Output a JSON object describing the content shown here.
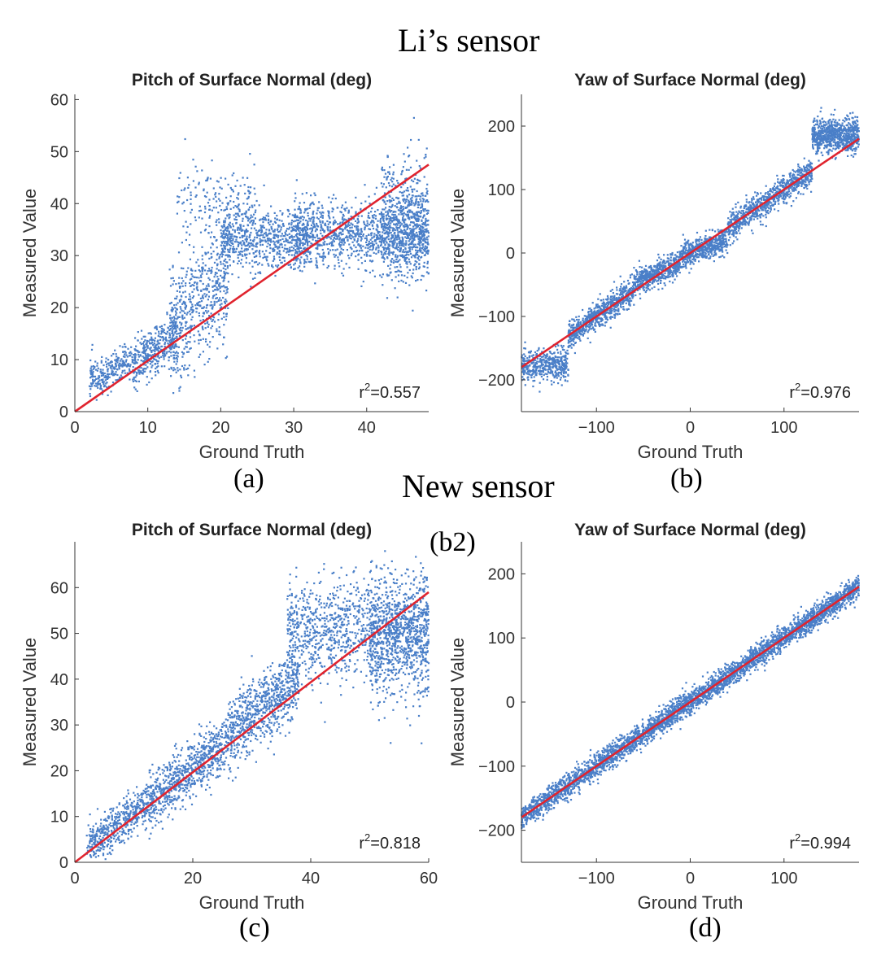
{
  "group_titles": {
    "top": "Li’s sensor",
    "bottom": "New sensor"
  },
  "stray_label": "(b2)",
  "chart_data": [
    {
      "id": "a",
      "panel_label": "(a)",
      "type": "scatter",
      "title": "Pitch of Surface Normal (deg)",
      "xlabel": "Ground Truth",
      "ylabel": "Measured Value",
      "xlim": [
        0,
        48.5
      ],
      "ylim": [
        0,
        61
      ],
      "xticks": [
        0,
        10,
        20,
        30,
        40
      ],
      "yticks": [
        0,
        10,
        20,
        30,
        40,
        50,
        60
      ],
      "r2_prefix": "r",
      "r2_exp": "2",
      "r2_value": "=0.557",
      "fit_line": {
        "x": [
          0,
          48.5
        ],
        "y": [
          0,
          47.5
        ]
      },
      "point_color": "#4a7fc8",
      "line_color": "#e0242e",
      "seed": 11,
      "n_points": 3800,
      "clusters": [
        {
          "n": 0.07,
          "x": [
            2,
            8
          ],
          "mean": [
            0.6,
            5.0
          ],
          "sd": 1.8
        },
        {
          "n": 0.1,
          "x": [
            8,
            14
          ],
          "mean": [
            0.9,
            2.0
          ],
          "sd": 2.5
        },
        {
          "n": 0.15,
          "x": [
            13,
            21
          ],
          "mean": [
            1.25,
            0.0
          ],
          "sd": 5.5
        },
        {
          "n": 0.18,
          "x": [
            20,
            32
          ],
          "mean": [
            0.0,
            33.0
          ],
          "sd": 2.8
        },
        {
          "n": 0.3,
          "x": [
            30,
            48.5
          ],
          "mean": [
            0.0,
            34.0
          ],
          "sd": 3.2
        },
        {
          "n": 0.15,
          "x": [
            42,
            48.5
          ],
          "mean": [
            0.0,
            36.5
          ],
          "sd": 5.5
        },
        {
          "n": 0.05,
          "x": [
            14,
            25
          ],
          "mean": [
            0.0,
            40.0
          ],
          "sd": 4.0
        }
      ]
    },
    {
      "id": "b",
      "panel_label": "(b)",
      "type": "scatter",
      "title": "Yaw of Surface Normal (deg)",
      "xlabel": "Ground Truth",
      "ylabel": "Measured Value",
      "xlim": [
        -180,
        180
      ],
      "ylim": [
        -250,
        250
      ],
      "xticks": [
        -100,
        0,
        100
      ],
      "yticks": [
        -200,
        -100,
        0,
        100,
        200
      ],
      "r2_prefix": "r",
      "r2_exp": "2",
      "r2_value": "=0.976",
      "fit_line": {
        "x": [
          -180,
          180
        ],
        "y": [
          -180,
          180
        ]
      },
      "point_color": "#4a7fc8",
      "line_color": "#e0242e",
      "seed": 23,
      "n_points": 3800,
      "clusters": [
        {
          "n": 0.12,
          "x": [
            -180,
            -130
          ],
          "mean": [
            0.0,
            -175.0
          ],
          "sd": 12
        },
        {
          "n": 0.18,
          "x": [
            -130,
            -60
          ],
          "mean": [
            1.0,
            0.0
          ],
          "sd": 11
        },
        {
          "n": 0.14,
          "x": [
            -60,
            -10
          ],
          "mean": [
            0.6,
            -10.0
          ],
          "sd": 10
        },
        {
          "n": 0.14,
          "x": [
            -10,
            40
          ],
          "mean": [
            0.5,
            0.0
          ],
          "sd": 10
        },
        {
          "n": 0.22,
          "x": [
            40,
            130
          ],
          "mean": [
            1.0,
            0.0
          ],
          "sd": 11
        },
        {
          "n": 0.2,
          "x": [
            130,
            180
          ],
          "mean": [
            0.0,
            185.0
          ],
          "sd": 14
        }
      ]
    },
    {
      "id": "c",
      "panel_label": "(c)",
      "type": "scatter",
      "title": "Pitch of Surface Normal (deg)",
      "xlabel": "Ground Truth",
      "ylabel": "Measured Value",
      "xlim": [
        0,
        60
      ],
      "ylim": [
        0,
        70
      ],
      "xticks": [
        0,
        20,
        40,
        60
      ],
      "yticks": [
        0,
        10,
        20,
        30,
        40,
        50,
        60
      ],
      "r2_prefix": "r",
      "r2_exp": "2",
      "r2_value": "=0.818",
      "fit_line": {
        "x": [
          0,
          60
        ],
        "y": [
          0,
          59
        ]
      },
      "point_color": "#4a7fc8",
      "line_color": "#e0242e",
      "seed": 37,
      "n_points": 3800,
      "clusters": [
        {
          "n": 0.12,
          "x": [
            2,
            12
          ],
          "mean": [
            0.9,
            1.5
          ],
          "sd": 2.2
        },
        {
          "n": 0.2,
          "x": [
            12,
            26
          ],
          "mean": [
            1.0,
            0.5
          ],
          "sd": 3.0
        },
        {
          "n": 0.2,
          "x": [
            26,
            38
          ],
          "mean": [
            1.05,
            0.0
          ],
          "sd": 4.0
        },
        {
          "n": 0.32,
          "x": [
            36,
            60
          ],
          "mean": [
            0.0,
            51.0
          ],
          "sd": 5.5
        },
        {
          "n": 0.16,
          "x": [
            50,
            60
          ],
          "mean": [
            0.0,
            48.0
          ],
          "sd": 6.5
        }
      ]
    },
    {
      "id": "d",
      "panel_label": "(d)",
      "type": "scatter",
      "title": "Yaw of Surface Normal (deg)",
      "xlabel": "Ground Truth",
      "ylabel": "Measured Value",
      "xlim": [
        -180,
        180
      ],
      "ylim": [
        -250,
        250
      ],
      "xticks": [
        -100,
        0,
        100
      ],
      "yticks": [
        -200,
        -100,
        0,
        100,
        200
      ],
      "r2_prefix": "r",
      "r2_exp": "2",
      "r2_value": "=0.994",
      "fit_line": {
        "x": [
          -180,
          180
        ],
        "y": [
          -180,
          180
        ]
      },
      "point_color": "#4a7fc8",
      "line_color": "#e0242e",
      "seed": 51,
      "n_points": 3800,
      "clusters": [
        {
          "n": 1.0,
          "x": [
            -180,
            180
          ],
          "mean": [
            1.0,
            0.0
          ],
          "sd": 9
        }
      ]
    }
  ]
}
